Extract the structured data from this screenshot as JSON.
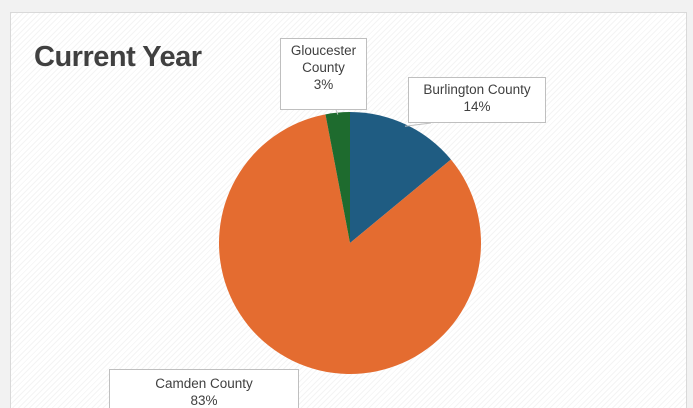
{
  "chart_data": {
    "type": "pie",
    "title": "Current Year",
    "slices": [
      {
        "name": "Burlington County",
        "value": 14,
        "label": "14%",
        "color": "#1f5c82"
      },
      {
        "name": "Camden County",
        "value": 83,
        "label": "83%",
        "color": "#e46c30"
      },
      {
        "name": "Gloucester County",
        "value": 3,
        "label": "3%",
        "color": "#1e6b2e"
      }
    ],
    "start_angle_deg": 0,
    "direction": "clockwise"
  }
}
